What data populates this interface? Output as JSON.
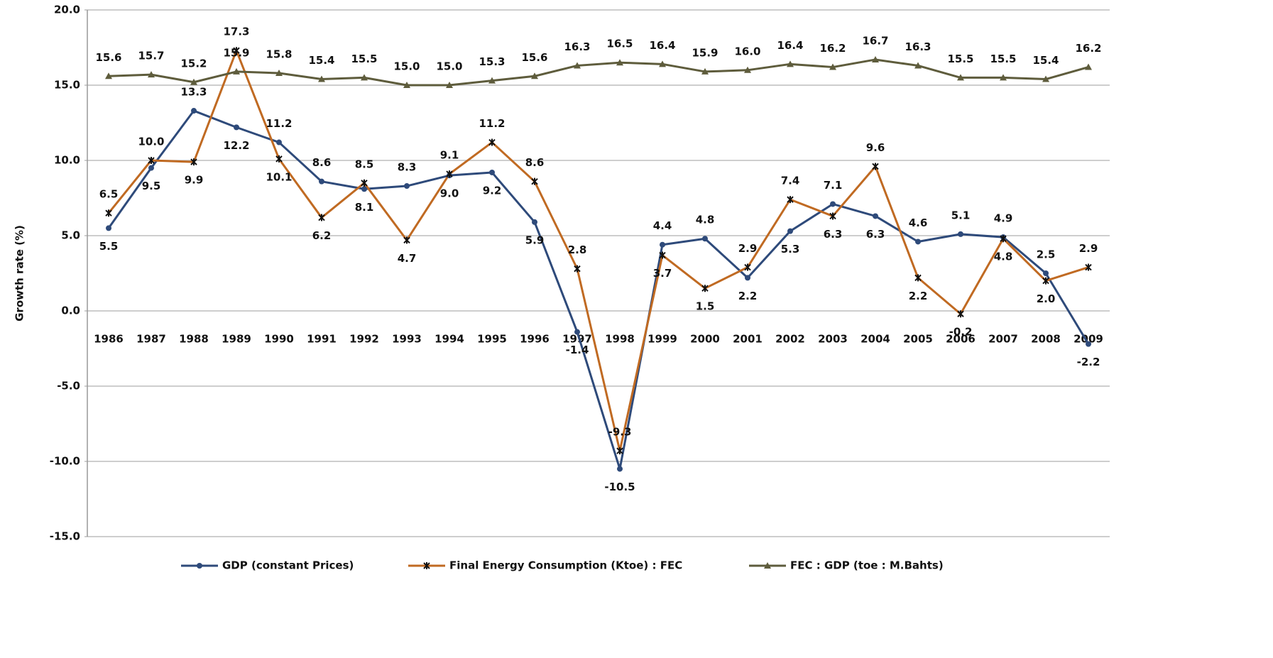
{
  "chart_data": {
    "type": "line",
    "y_label": "Growth rate (%)",
    "categories": [
      "1986",
      "1987",
      "1988",
      "1989",
      "1990",
      "1991",
      "1992",
      "1993",
      "1994",
      "1995",
      "1996",
      "1997",
      "1998",
      "1999",
      "2000",
      "2001",
      "2002",
      "2003",
      "2004",
      "2005",
      "2006",
      "2007",
      "2008",
      "2009"
    ],
    "ylim": [
      -15,
      20
    ],
    "yticks": [
      {
        "value": -15,
        "label": "-15.0"
      },
      {
        "value": -10,
        "label": "-10.0"
      },
      {
        "value": -5,
        "label": "-5.0"
      },
      {
        "value": 0,
        "label": "0.0"
      },
      {
        "value": 5,
        "label": "5.0"
      },
      {
        "value": 10,
        "label": "10.0"
      },
      {
        "value": 15,
        "label": "15.0"
      },
      {
        "value": 20,
        "label": "20.0"
      }
    ],
    "grid": true,
    "legend": "bottom",
    "series": [
      {
        "name": "GDP (constant Prices)",
        "color": "#2e4a7a",
        "marker": "circle",
        "values": [
          5.5,
          9.5,
          13.3,
          12.2,
          11.2,
          8.6,
          8.1,
          8.3,
          9.0,
          9.2,
          5.9,
          -1.4,
          -10.5,
          4.4,
          4.8,
          2.2,
          5.3,
          7.1,
          6.3,
          4.6,
          5.1,
          4.9,
          2.5,
          -2.2
        ],
        "value_labels": [
          "5.5",
          "9.5",
          "13.3",
          "12.2",
          "11.2",
          "8.6",
          "8.1",
          "8.3",
          "9.0",
          "9.2",
          "5.9",
          "-1.4",
          "-10.5",
          "4.4",
          "4.8",
          "2.2",
          "5.3",
          "7.1",
          "6.3",
          "4.6",
          "5.1",
          "4.9",
          "2.5",
          "-2.2"
        ]
      },
      {
        "name": "Final Energy Consumption (Ktoe) : FEC",
        "color": "#c06a22",
        "marker": "star",
        "values": [
          6.5,
          10.0,
          9.9,
          17.3,
          10.1,
          6.2,
          8.5,
          4.7,
          9.1,
          11.2,
          8.6,
          2.8,
          -9.3,
          3.7,
          1.5,
          2.9,
          7.4,
          6.3,
          9.6,
          2.2,
          -0.2,
          4.8,
          2.0,
          2.9
        ],
        "value_labels": [
          "6.5",
          "10.0",
          "9.9",
          "17.3",
          "10.1",
          "6.2",
          "8.5",
          "4.7",
          "9.1",
          "11.2",
          "8.6",
          "2.8",
          "-9.3",
          "3.7",
          "1.5",
          "2.9",
          "7.4",
          "6.3",
          "9.6",
          "2.2",
          "-0.2",
          "4.8",
          "2.0",
          "2.9"
        ]
      },
      {
        "name": "FEC : GDP (toe : M.Bahts)",
        "color": "#5e5c3c",
        "marker": "triangle",
        "values": [
          15.6,
          15.7,
          15.2,
          15.9,
          15.8,
          15.4,
          15.5,
          15.0,
          15.0,
          15.3,
          15.6,
          16.3,
          16.5,
          16.4,
          15.9,
          16.0,
          16.4,
          16.2,
          16.7,
          16.3,
          15.5,
          15.5,
          15.4,
          16.2
        ],
        "value_labels": [
          "15.6",
          "15.7",
          "15.2",
          "15.9",
          "15.8",
          "15.4",
          "15.5",
          "15.0",
          "15.0",
          "15.3",
          "15.6",
          "16.3",
          "16.5",
          "16.4",
          "15.9",
          "16.0",
          "16.4",
          "16.2",
          "16.7",
          "16.3",
          "15.5",
          "15.5",
          "15.4",
          "16.2"
        ]
      }
    ]
  }
}
